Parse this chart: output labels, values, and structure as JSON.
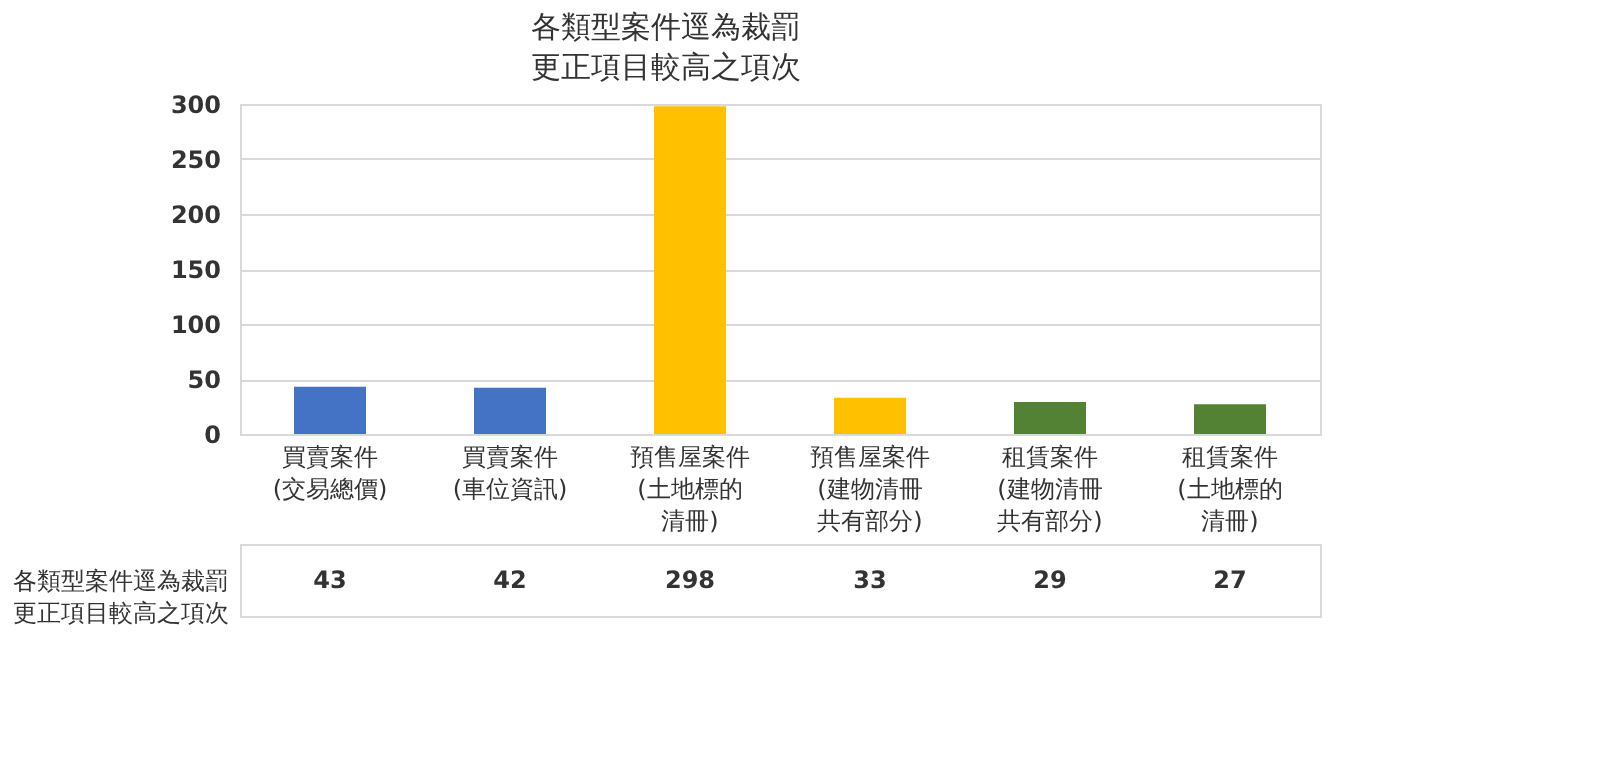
{
  "chart_data": {
    "type": "bar",
    "title": "各類型案件逕為裁罰更正項目較高之項次",
    "categories": [
      "買賣案件(交易總價)",
      "買賣案件(車位資訊)",
      "預售屋案件(土地標的清冊)",
      "預售屋案件(建物清冊共有部分)",
      "租賃案件(建物清冊共有部分)",
      "租賃案件(土地標的清冊)"
    ],
    "series": [
      {
        "name": "各類型案件逕為裁罰更正項目較高之項次",
        "values": [
          43,
          42,
          298,
          33,
          29,
          27
        ],
        "colors": [
          "#4472c4",
          "#4472c4",
          "#ffc000",
          "#ffc000",
          "#548235",
          "#548235"
        ]
      }
    ],
    "ylim": [
      0,
      300
    ],
    "yticks": [
      0,
      50,
      100,
      150,
      200,
      250,
      300
    ],
    "grid": "y",
    "data_labels": true
  }
}
